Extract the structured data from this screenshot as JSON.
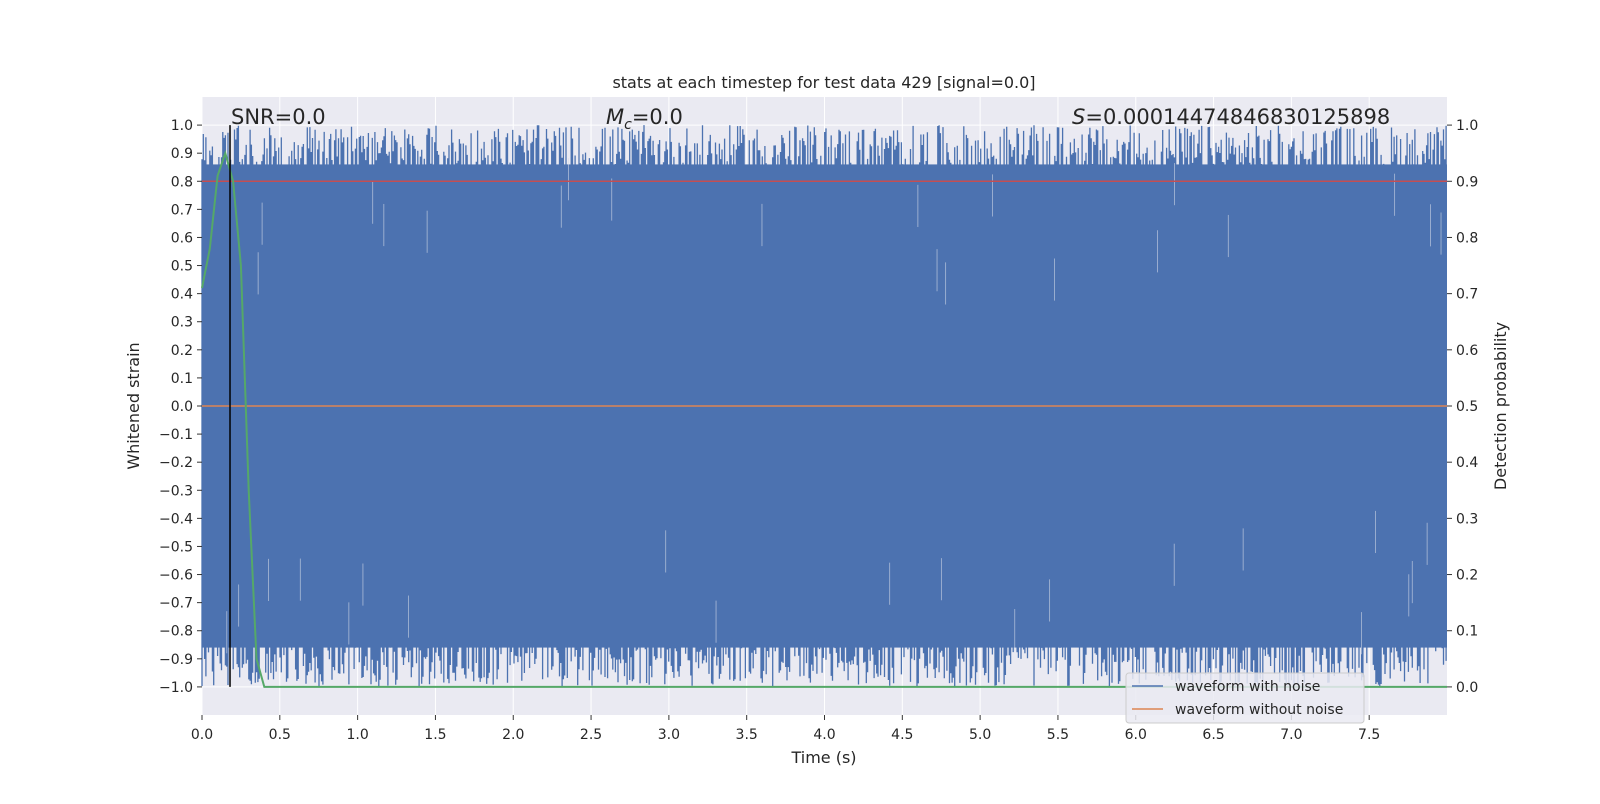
{
  "colors": {
    "background": "#eaeaf2",
    "grid": "#ffffff",
    "noise": "#4c72b0",
    "clean": "#dd8452",
    "probability": "#55a868",
    "threshold": "#c44e52",
    "marker": "#000000"
  },
  "chart_data": {
    "type": "line",
    "title": "stats at each timestep for test data 429 [signal=0.0]",
    "xlabel": "Time (s)",
    "ylabel": "Whitened strain",
    "y2label": "Detection probability",
    "xlim": [
      0.0,
      8.0
    ],
    "ylim": [
      -1.1,
      1.1
    ],
    "y2lim": [
      -0.05,
      1.05
    ],
    "grid": true,
    "x_ticks": [
      0.0,
      0.5,
      1.0,
      1.5,
      2.0,
      2.5,
      3.0,
      3.5,
      4.0,
      4.5,
      5.0,
      5.5,
      6.0,
      6.5,
      7.0,
      7.5
    ],
    "x_tick_labels": [
      "0.0",
      "0.5",
      "1.0",
      "1.5",
      "2.0",
      "2.5",
      "3.0",
      "3.5",
      "4.0",
      "4.5",
      "5.0",
      "5.5",
      "6.0",
      "6.5",
      "7.0",
      "7.5"
    ],
    "y_ticks": [
      1.0,
      0.9,
      0.8,
      0.7,
      0.6,
      0.5,
      0.4,
      0.3,
      0.2,
      0.1,
      0.0,
      -0.1,
      -0.2,
      -0.3,
      -0.4,
      -0.5,
      -0.6,
      -0.7,
      -0.8,
      -0.9,
      -1.0
    ],
    "y_tick_labels": [
      "1.0",
      "0.9",
      "0.8",
      "0.7",
      "0.6",
      "0.5",
      "0.4",
      "0.3",
      "0.2",
      "0.1",
      "0.0",
      "−0.1",
      "−0.2",
      "−0.3",
      "−0.4",
      "−0.5",
      "−0.6",
      "−0.7",
      "−0.8",
      "−0.9",
      "−1.0"
    ],
    "y2_ticks": [
      1.0,
      0.9,
      0.8,
      0.7,
      0.6,
      0.5,
      0.4,
      0.3,
      0.2,
      0.1,
      0.0
    ],
    "y2_tick_labels": [
      "1.0",
      "0.9",
      "0.8",
      "0.7",
      "0.6",
      "0.5",
      "0.4",
      "0.3",
      "0.2",
      "0.1",
      "0.0"
    ],
    "annotations": {
      "snr": "SNR=0.0",
      "mc_symbol": "M",
      "mc_sub": "c",
      "mc_value": "=0.0",
      "s_symbol": "S",
      "s_value": "=0.0001447484683012589​8"
    },
    "legend_position": "lower right",
    "series": [
      {
        "name": "waveform with noise",
        "axis": "left",
        "description": "whitened strain noise filling roughly -1.0 to 1.0 over 0 to 8 s",
        "range": [
          -1.0,
          1.0
        ],
        "x_range": [
          0.0,
          8.0
        ]
      },
      {
        "name": "waveform without noise",
        "axis": "left",
        "constant_value": 0.0,
        "x_range": [
          0.0,
          8.0
        ]
      },
      {
        "axis": "right",
        "x": [
          0.0,
          0.05,
          0.1,
          0.15,
          0.2,
          0.25,
          0.3,
          0.35,
          0.4,
          1.0,
          2.0,
          3.0,
          4.0,
          5.0,
          6.0,
          7.0,
          8.0
        ],
        "values": [
          0.71,
          0.78,
          0.91,
          0.95,
          0.9,
          0.75,
          0.35,
          0.05,
          0.0,
          0.0,
          0.0,
          0.0,
          0.0,
          0.0,
          0.0,
          0.0,
          0.0
        ]
      }
    ],
    "threshold": {
      "axis": "right",
      "value": 0.9
    },
    "marker_time": 0.18
  }
}
